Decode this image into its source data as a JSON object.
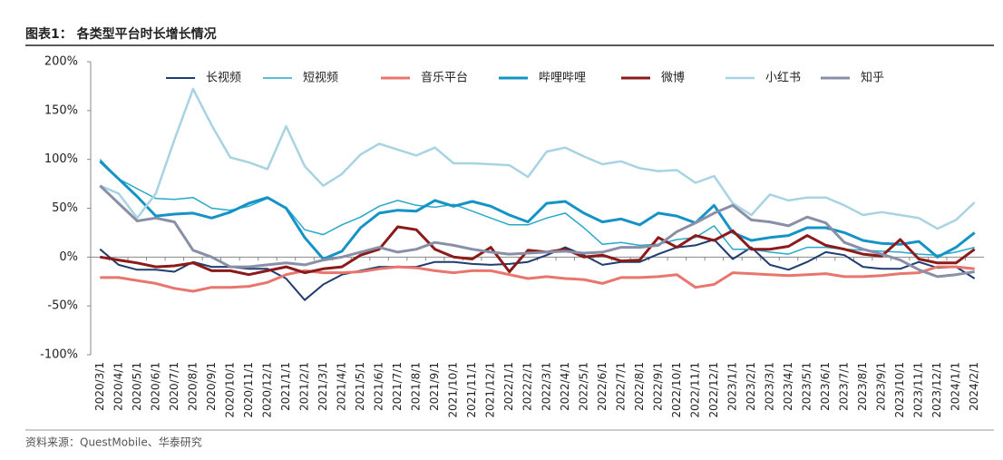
{
  "chart_data": {
    "type": "line",
    "title": "图表1： 各类型平台时长增长情况",
    "source": "资料来源：QuestMobile、华泰研究",
    "categories": [
      "2020/3/1",
      "2020/4/1",
      "2020/5/1",
      "2020/6/1",
      "2020/7/1",
      "2020/8/1",
      "2020/9/1",
      "2020/10/1",
      "2020/11/1",
      "2020/12/1",
      "2021/1/1",
      "2021/2/1",
      "2021/3/1",
      "2021/4/1",
      "2021/5/1",
      "2021/6/1",
      "2021/7/1",
      "2021/8/1",
      "2021/9/1",
      "2021/10/1",
      "2021/11/1",
      "2021/12/1",
      "2022/1/1",
      "2022/2/1",
      "2022/3/1",
      "2022/4/1",
      "2022/5/1",
      "2022/6/1",
      "2022/7/1",
      "2022/8/1",
      "2022/9/1",
      "2022/10/1",
      "2022/11/1",
      "2022/12/1",
      "2023/1/1",
      "2023/2/1",
      "2023/3/1",
      "2023/4/1",
      "2023/5/1",
      "2023/6/1",
      "2023/7/1",
      "2023/8/1",
      "2023/9/1",
      "2023/10/1",
      "2023/11/1",
      "2023/12/1",
      "2024/1/1",
      "2024/2/1"
    ],
    "ylim": [
      -100,
      200
    ],
    "yticks": [
      {
        "value": -100,
        "label": "-100%"
      },
      {
        "value": -50,
        "label": "-50%"
      },
      {
        "value": 0,
        "label": "0%"
      },
      {
        "value": 50,
        "label": "50%"
      },
      {
        "value": 100,
        "label": "100%"
      },
      {
        "value": 150,
        "label": "150%"
      },
      {
        "value": 200,
        "label": "200%"
      }
    ],
    "grid": false,
    "series": [
      {
        "name": "长视频",
        "color": "#1f3d6e",
        "values": [
          8,
          -8,
          -13,
          -13,
          -15,
          -5,
          -10,
          -10,
          -12,
          -12,
          -22,
          -44,
          -28,
          -18,
          -14,
          -10,
          -10,
          -10,
          -5,
          -5,
          -7,
          -8,
          -7,
          -5,
          2,
          10,
          2,
          -8,
          -5,
          -5,
          3,
          10,
          12,
          18,
          -2,
          10,
          -8,
          -13,
          -5,
          5,
          2,
          -10,
          -12,
          -12,
          -5,
          -11,
          -10,
          -22
        ]
      },
      {
        "name": "短视频",
        "color": "#27a9c9",
        "values": [
          100,
          80,
          70,
          60,
          59,
          61,
          50,
          48,
          52,
          60,
          51,
          28,
          23,
          33,
          41,
          52,
          58,
          53,
          51,
          54,
          47,
          40,
          33,
          33,
          40,
          45,
          30,
          13,
          15,
          12,
          13,
          18,
          20,
          32,
          8,
          8,
          5,
          3,
          10,
          10,
          8,
          7,
          6,
          5,
          3,
          2,
          5,
          10
        ]
      },
      {
        "name": "音乐平台",
        "color": "#e8766e",
        "values": [
          -21,
          -21,
          -24,
          -27,
          -32,
          -35,
          -31,
          -31,
          -30,
          -26,
          -18,
          -14,
          -16,
          -16,
          -15,
          -12,
          -10,
          -11,
          -14,
          -16,
          -14,
          -14,
          -18,
          -22,
          -20,
          -22,
          -23,
          -27,
          -21,
          -21,
          -20,
          -18,
          -31,
          -28,
          -16,
          -17,
          -18,
          -19,
          -18,
          -17,
          -20,
          -20,
          -19,
          -17,
          -16,
          -10,
          -10,
          -12
        ]
      },
      {
        "name": "哔哩哔哩",
        "color": "#1593c6",
        "values": [
          98,
          80,
          62,
          42,
          44,
          45,
          40,
          46,
          55,
          61,
          50,
          20,
          -2,
          6,
          30,
          45,
          48,
          47,
          58,
          52,
          57,
          52,
          43,
          36,
          55,
          57,
          45,
          36,
          39,
          33,
          45,
          42,
          35,
          53,
          25,
          17,
          20,
          22,
          30,
          30,
          25,
          17,
          14,
          13,
          16,
          0,
          10,
          25
        ]
      },
      {
        "name": "微博",
        "color": "#8b1a1a",
        "values": [
          0,
          -3,
          -6,
          -10,
          -9,
          -6,
          -14,
          -14,
          -18,
          -14,
          -10,
          -16,
          -12,
          -10,
          2,
          8,
          31,
          28,
          8,
          0,
          -2,
          10,
          -15,
          7,
          5,
          8,
          0,
          2,
          -4,
          -3,
          20,
          10,
          22,
          17,
          27,
          8,
          8,
          11,
          22,
          12,
          8,
          3,
          1,
          18,
          -2,
          -6,
          -6,
          8
        ]
      },
      {
        "name": "小红书",
        "color": "#a8d3e3",
        "values": [
          73,
          65,
          40,
          65,
          120,
          172,
          135,
          102,
          97,
          90,
          134,
          93,
          73,
          85,
          105,
          116,
          110,
          104,
          112,
          96,
          96,
          95,
          94,
          82,
          108,
          112,
          103,
          95,
          98,
          91,
          88,
          89,
          76,
          83,
          55,
          43,
          64,
          58,
          61,
          61,
          53,
          43,
          46,
          43,
          40,
          29,
          38,
          56
        ]
      },
      {
        "name": "知乎",
        "color": "#8a8fa8",
        "values": [
          73,
          55,
          37,
          40,
          36,
          7,
          0,
          -10,
          -10,
          -8,
          -6,
          -8,
          -3,
          0,
          5,
          10,
          5,
          8,
          15,
          12,
          8,
          5,
          3,
          4,
          5,
          6,
          4,
          5,
          10,
          10,
          12,
          26,
          35,
          45,
          53,
          38,
          36,
          32,
          41,
          35,
          15,
          8,
          3,
          -3,
          -13,
          -20,
          -18,
          -15
        ]
      }
    ]
  }
}
